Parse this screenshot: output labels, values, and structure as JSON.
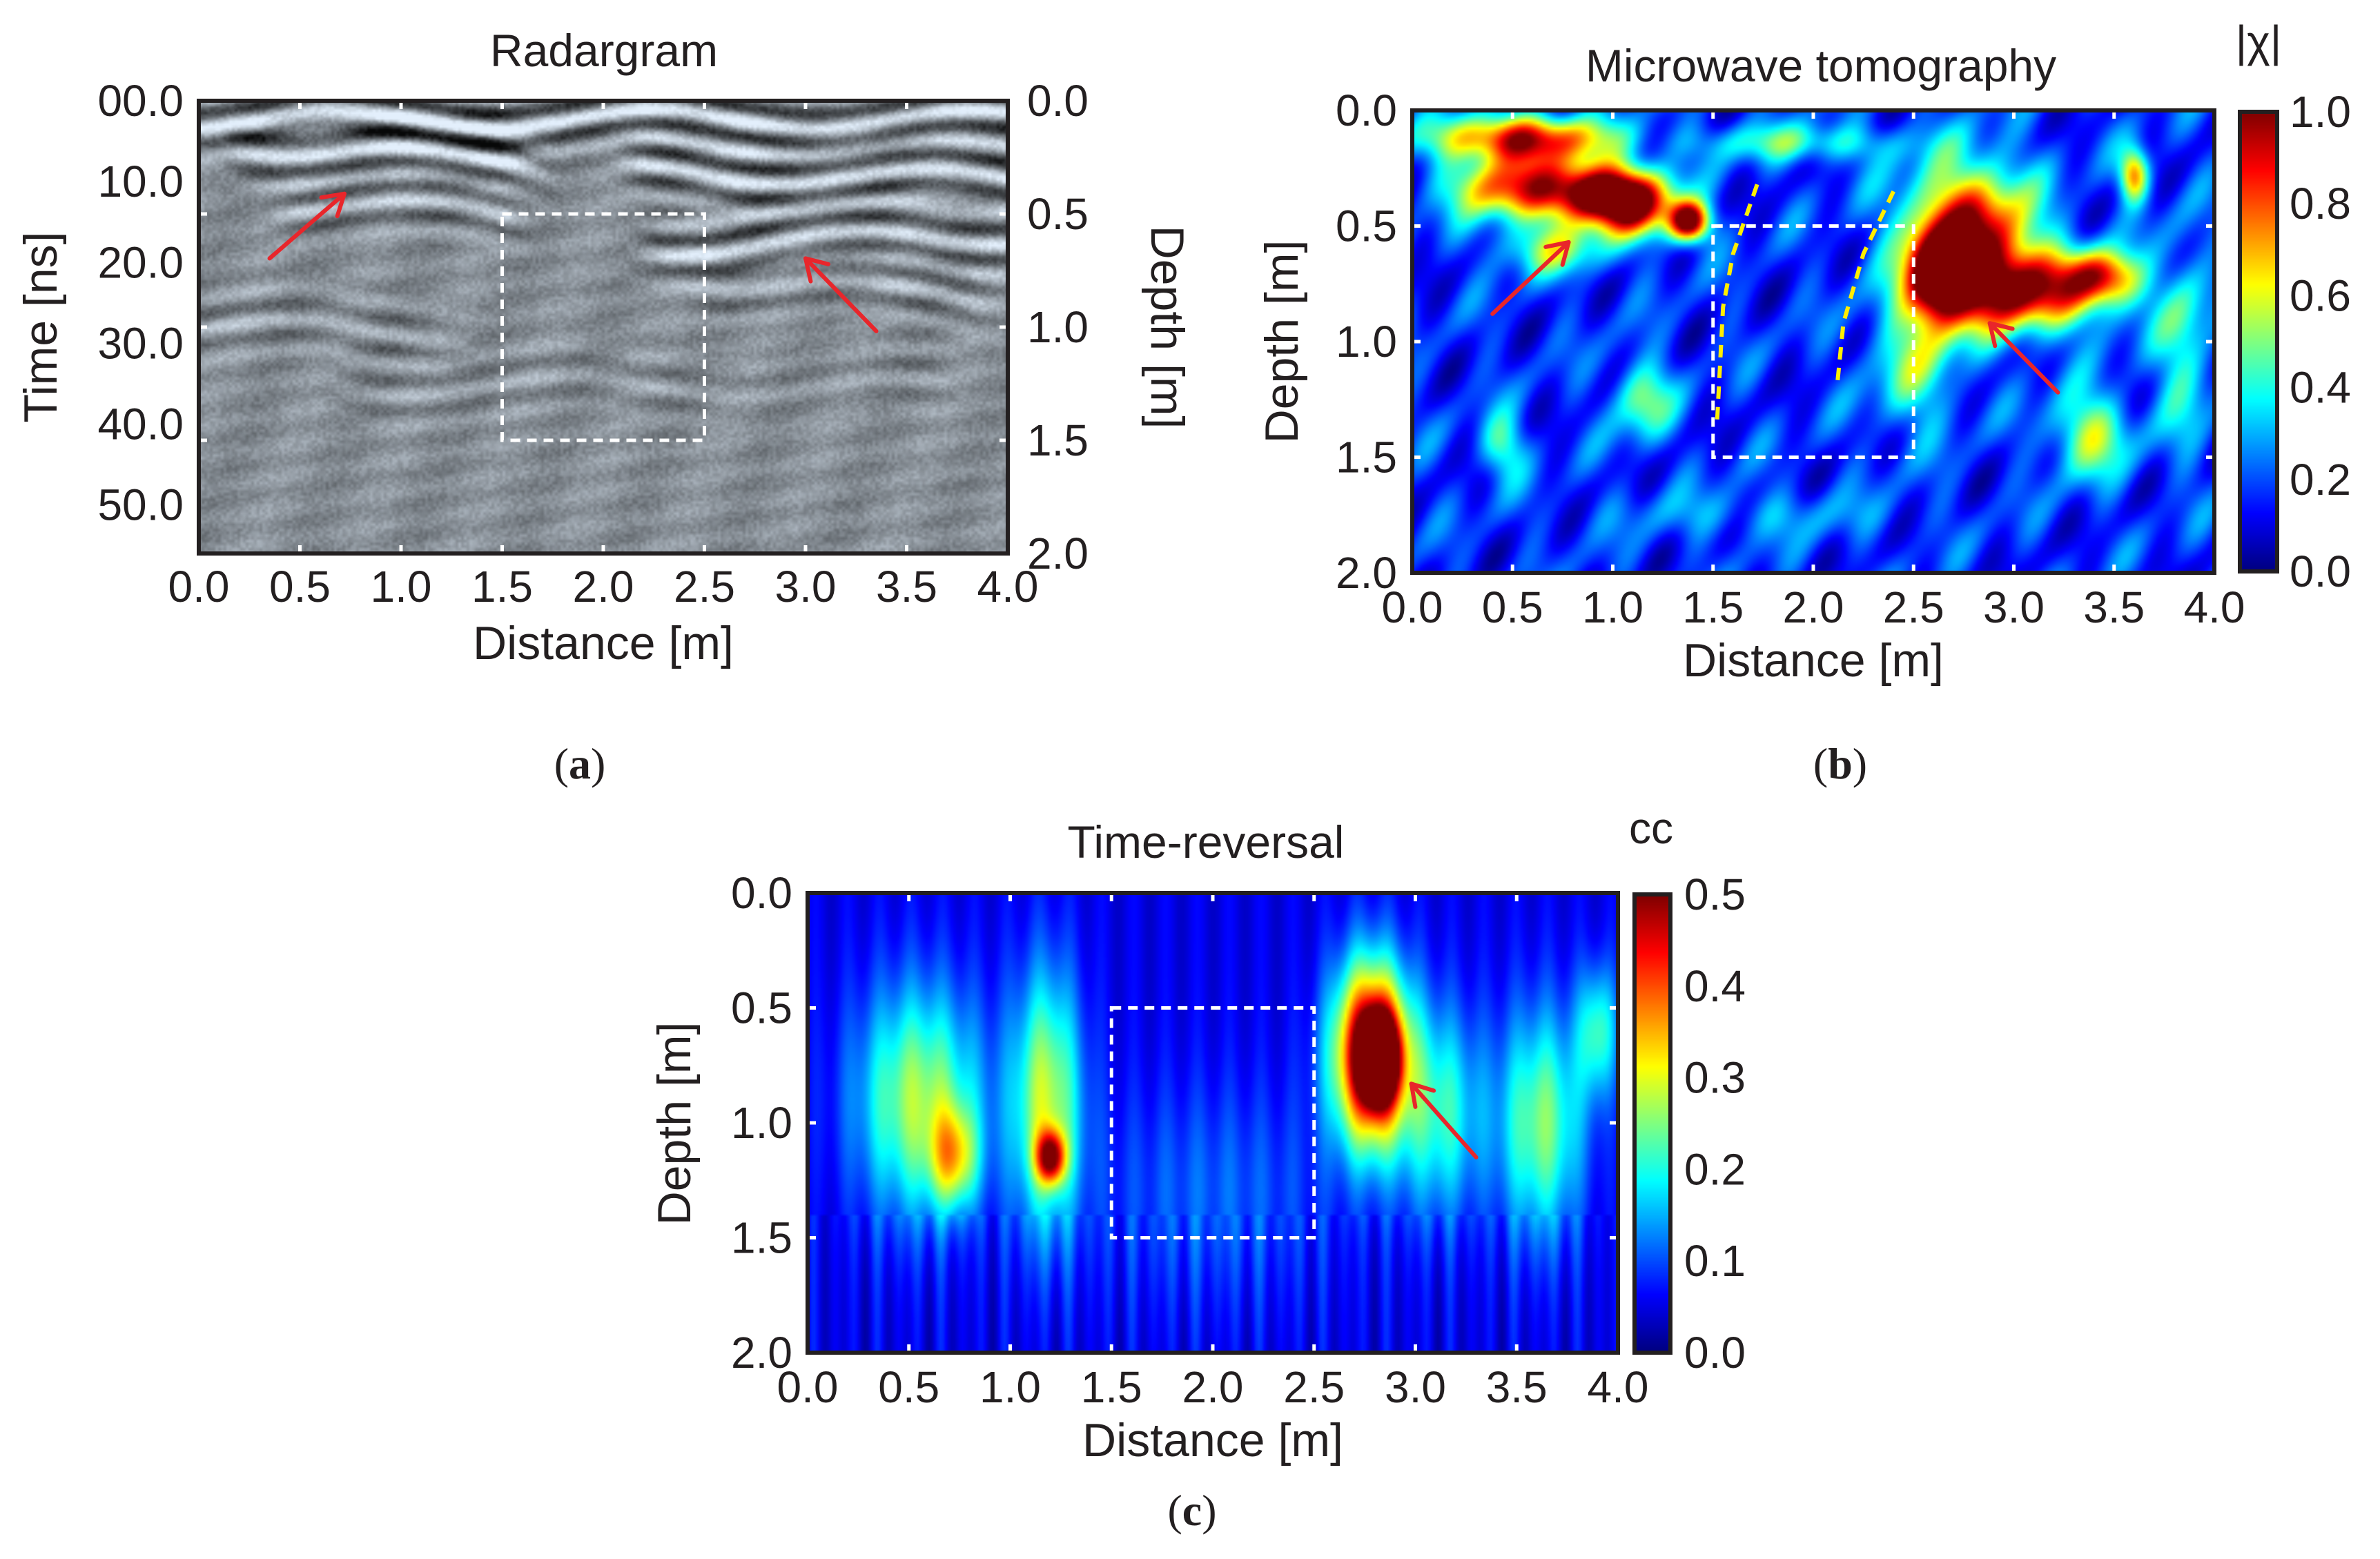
{
  "chart_data": [
    {
      "panel": "a",
      "panel_label": "a",
      "type": "heatmap",
      "title": "Radargram",
      "xlabel": "Distance [m]",
      "ylabel_left": "Time [ns]",
      "ylabel_right": "Depth [m]",
      "xlim": [
        0.0,
        4.0
      ],
      "ylim_left": [
        0,
        56
      ],
      "ylim_right": [
        0.0,
        2.0
      ],
      "x_ticks": [
        "0.0",
        "0.5",
        "1.0",
        "1.5",
        "2.0",
        "2.5",
        "3.0",
        "3.5",
        "4.0"
      ],
      "y_ticks_left": [
        "00.0",
        "10.0",
        "20.0",
        "30.0",
        "40.0",
        "50.0"
      ],
      "y_ticks_right": [
        "0.0",
        "0.5",
        "1.0",
        "1.5",
        "2.0"
      ],
      "colormap": "grayscale",
      "box": {
        "x": [
          1.5,
          2.5
        ],
        "depth": [
          0.5,
          1.5
        ]
      },
      "arrows": [
        {
          "tail": [
            0.35,
            19.5
          ],
          "head": [
            0.72,
            11.5
          ]
        },
        {
          "tail": [
            3.35,
            28.5
          ],
          "head": [
            3.0,
            19.5
          ]
        }
      ],
      "reflectors": [
        {
          "x0": 0.0,
          "x1": 4.0,
          "t": 2.0,
          "amp": 1.0,
          "slope": 0.0
        },
        {
          "x0": 0.3,
          "x1": 1.6,
          "t": 6.5,
          "amp": 0.9,
          "slope": 1.8
        },
        {
          "x0": 2.2,
          "x1": 4.0,
          "t": 9.0,
          "amp": 0.9,
          "slope": 0.5
        },
        {
          "x0": 0.5,
          "x1": 1.5,
          "t": 13.0,
          "amp": 0.7,
          "slope": 0.8
        },
        {
          "x0": 2.3,
          "x1": 4.0,
          "t": 17.0,
          "amp": 0.8,
          "slope": -0.8
        },
        {
          "x0": 2.6,
          "x1": 3.8,
          "t": 23.0,
          "amp": 0.6,
          "slope": 1.2
        },
        {
          "x0": 0.0,
          "x1": 1.2,
          "t": 28.0,
          "amp": 0.4,
          "slope": 0.4
        },
        {
          "x0": 0.8,
          "x1": 3.6,
          "t": 35.0,
          "amp": 0.3,
          "slope": 0.0
        }
      ]
    },
    {
      "panel": "b",
      "panel_label": "b",
      "type": "heatmap",
      "title": "Microwave tomography",
      "xlabel": "Distance [m]",
      "ylabel": "Depth [m]",
      "xlim": [
        0.0,
        4.0
      ],
      "ylim": [
        0.0,
        2.0
      ],
      "x_ticks": [
        "0.0",
        "0.5",
        "1.0",
        "1.5",
        "2.0",
        "2.5",
        "3.0",
        "3.5",
        "4.0"
      ],
      "y_ticks": [
        "0.0",
        "0.5",
        "1.0",
        "1.5",
        "2.0"
      ],
      "colorbar": {
        "label": "|χ|",
        "range": [
          0.0,
          1.0
        ],
        "ticks": [
          "0.0",
          "0.2",
          "0.4",
          "0.6",
          "0.8",
          "1.0"
        ]
      },
      "colormap": "jet",
      "box": {
        "x": [
          1.5,
          2.5
        ],
        "depth": [
          0.5,
          1.5
        ]
      },
      "dashed_lines": [
        {
          "points": [
            [
              1.72,
              0.32
            ],
            [
              1.6,
              0.62
            ],
            [
              1.55,
              0.85
            ],
            [
              1.52,
              1.35
            ]
          ]
        },
        {
          "points": [
            [
              2.4,
              0.35
            ],
            [
              2.25,
              0.62
            ],
            [
              2.15,
              0.92
            ],
            [
              2.12,
              1.18
            ]
          ]
        }
      ],
      "arrows": [
        {
          "tail": [
            0.4,
            0.88
          ],
          "head": [
            0.78,
            0.57
          ]
        },
        {
          "tail": [
            3.22,
            1.22
          ],
          "head": [
            2.88,
            0.92
          ]
        }
      ],
      "blobs": [
        {
          "x": 0.55,
          "d": 0.12,
          "sx": 0.3,
          "sd": 0.07,
          "amp": 0.75
        },
        {
          "x": 0.5,
          "d": 0.33,
          "sx": 0.22,
          "sd": 0.1,
          "amp": 0.65
        },
        {
          "x": 0.9,
          "d": 0.36,
          "sx": 0.16,
          "sd": 0.09,
          "amp": 0.85
        },
        {
          "x": 1.12,
          "d": 0.4,
          "sx": 0.14,
          "sd": 0.1,
          "amp": 0.75
        },
        {
          "x": 1.38,
          "d": 0.48,
          "sx": 0.07,
          "sd": 0.06,
          "amp": 0.95
        },
        {
          "x": 0.7,
          "d": 0.6,
          "sx": 0.18,
          "sd": 0.08,
          "amp": 0.35
        },
        {
          "x": 2.78,
          "d": 0.55,
          "sx": 0.22,
          "sd": 0.22,
          "amp": 0.85
        },
        {
          "x": 2.62,
          "d": 0.72,
          "sx": 0.1,
          "sd": 0.14,
          "amp": 0.75
        },
        {
          "x": 3.08,
          "d": 0.78,
          "sx": 0.28,
          "sd": 0.12,
          "amp": 0.7
        },
        {
          "x": 3.45,
          "d": 0.72,
          "sx": 0.12,
          "sd": 0.08,
          "amp": 0.55
        },
        {
          "x": 3.6,
          "d": 0.28,
          "sx": 0.05,
          "sd": 0.08,
          "amp": 0.6
        },
        {
          "x": 3.38,
          "d": 1.4,
          "sx": 0.14,
          "sd": 0.13,
          "amp": 0.4
        },
        {
          "x": 1.92,
          "d": 0.14,
          "sx": 0.35,
          "sd": 0.06,
          "amp": 0.28
        },
        {
          "x": 1.15,
          "d": 1.25,
          "sx": 0.1,
          "sd": 0.12,
          "amp": 0.35
        },
        {
          "x": 0.45,
          "d": 1.45,
          "sx": 0.08,
          "sd": 0.1,
          "amp": 0.3
        },
        {
          "x": 2.5,
          "d": 1.1,
          "sx": 0.15,
          "sd": 0.2,
          "amp": 0.3
        },
        {
          "x": 3.85,
          "d": 1.0,
          "sx": 0.1,
          "sd": 0.3,
          "amp": 0.28
        },
        {
          "x": 1.7,
          "d": 1.75,
          "sx": 0.5,
          "sd": 0.08,
          "amp": 0.12
        }
      ]
    },
    {
      "panel": "c",
      "panel_label": "c",
      "type": "heatmap",
      "title": "Time-reversal",
      "xlabel": "Distance [m]",
      "ylabel": "Depth [m]",
      "xlim": [
        0.0,
        4.0
      ],
      "ylim": [
        0.0,
        2.0
      ],
      "x_ticks": [
        "0.0",
        "0.5",
        "1.0",
        "1.5",
        "2.0",
        "2.5",
        "3.0",
        "3.5",
        "4.0"
      ],
      "y_ticks": [
        "0.0",
        "0.5",
        "1.0",
        "1.5",
        "2.0"
      ],
      "colorbar": {
        "label": "cc",
        "range": [
          0.0,
          0.5
        ],
        "ticks": [
          "0.0",
          "0.1",
          "0.2",
          "0.3",
          "0.4",
          "0.5"
        ]
      },
      "colormap": "jet",
      "box": {
        "x": [
          1.5,
          2.5
        ],
        "depth": [
          0.5,
          1.5
        ]
      },
      "arrows": [
        {
          "tail": [
            3.3,
            1.15
          ],
          "head": [
            2.98,
            0.83
          ]
        }
      ],
      "blobs": [
        {
          "x": 0.55,
          "d": 0.9,
          "sx": 0.22,
          "sd": 0.35,
          "amp": 0.22
        },
        {
          "x": 0.72,
          "d": 1.15,
          "sx": 0.08,
          "sd": 0.15,
          "amp": 0.2
        },
        {
          "x": 1.18,
          "d": 0.9,
          "sx": 0.12,
          "sd": 0.4,
          "amp": 0.23
        },
        {
          "x": 1.2,
          "d": 1.15,
          "sx": 0.05,
          "sd": 0.08,
          "amp": 0.33
        },
        {
          "x": 2.78,
          "d": 0.7,
          "sx": 0.13,
          "sd": 0.28,
          "amp": 0.5
        },
        {
          "x": 2.82,
          "d": 0.72,
          "sx": 0.06,
          "sd": 0.12,
          "amp": 0.56
        },
        {
          "x": 3.12,
          "d": 0.95,
          "sx": 0.15,
          "sd": 0.32,
          "amp": 0.16
        },
        {
          "x": 3.62,
          "d": 1.0,
          "sx": 0.15,
          "sd": 0.35,
          "amp": 0.2
        },
        {
          "x": 3.9,
          "d": 0.6,
          "sx": 0.07,
          "sd": 0.2,
          "amp": 0.16
        },
        {
          "x": 2.0,
          "d": 1.3,
          "sx": 0.45,
          "sd": 0.35,
          "amp": 0.06
        }
      ]
    }
  ]
}
